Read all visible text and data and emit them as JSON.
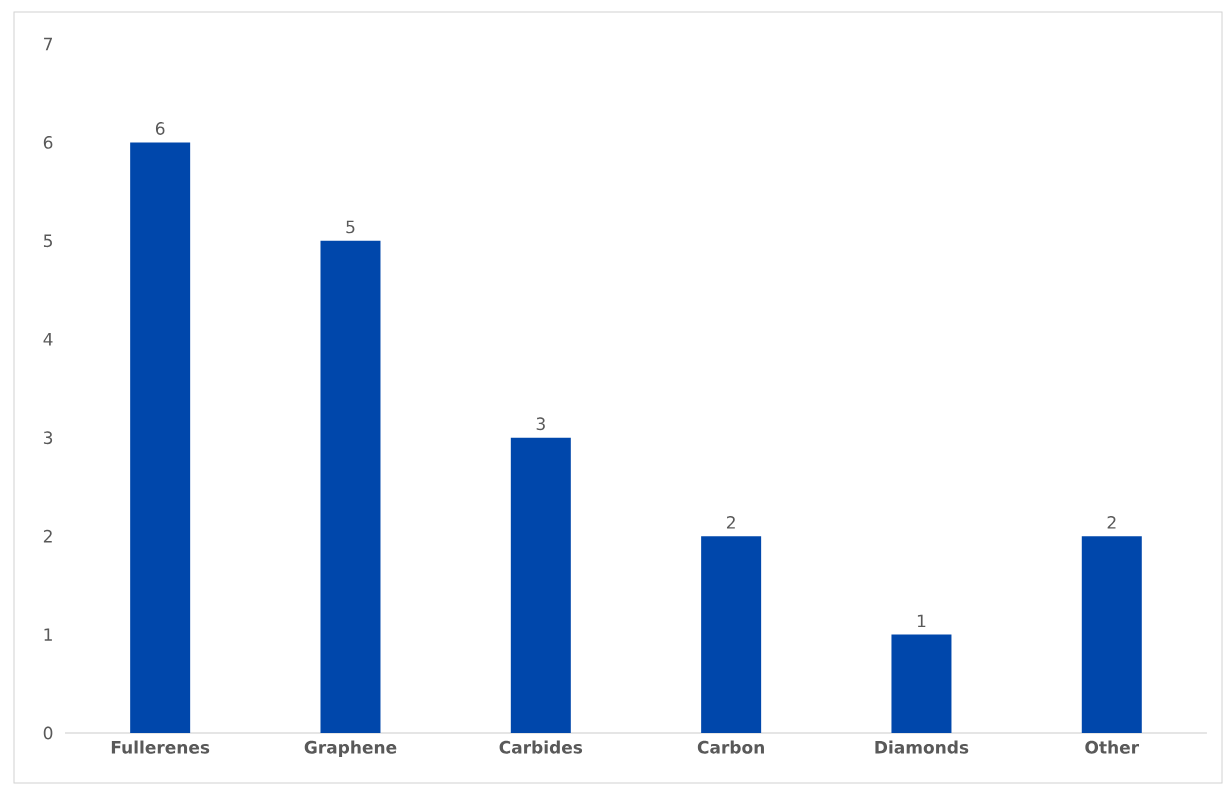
{
  "chart_data": {
    "type": "bar",
    "categories": [
      "Fullerenes",
      "Graphene",
      "Carbides",
      "Carbon",
      "Diamonds",
      "Other"
    ],
    "values": [
      6,
      5,
      3,
      2,
      1,
      2
    ],
    "color": "#0047ab",
    "ylim": [
      0,
      7
    ],
    "yticks": [
      0,
      1,
      2,
      3,
      4,
      5,
      6,
      7
    ],
    "grid": false,
    "data_labels": true
  }
}
